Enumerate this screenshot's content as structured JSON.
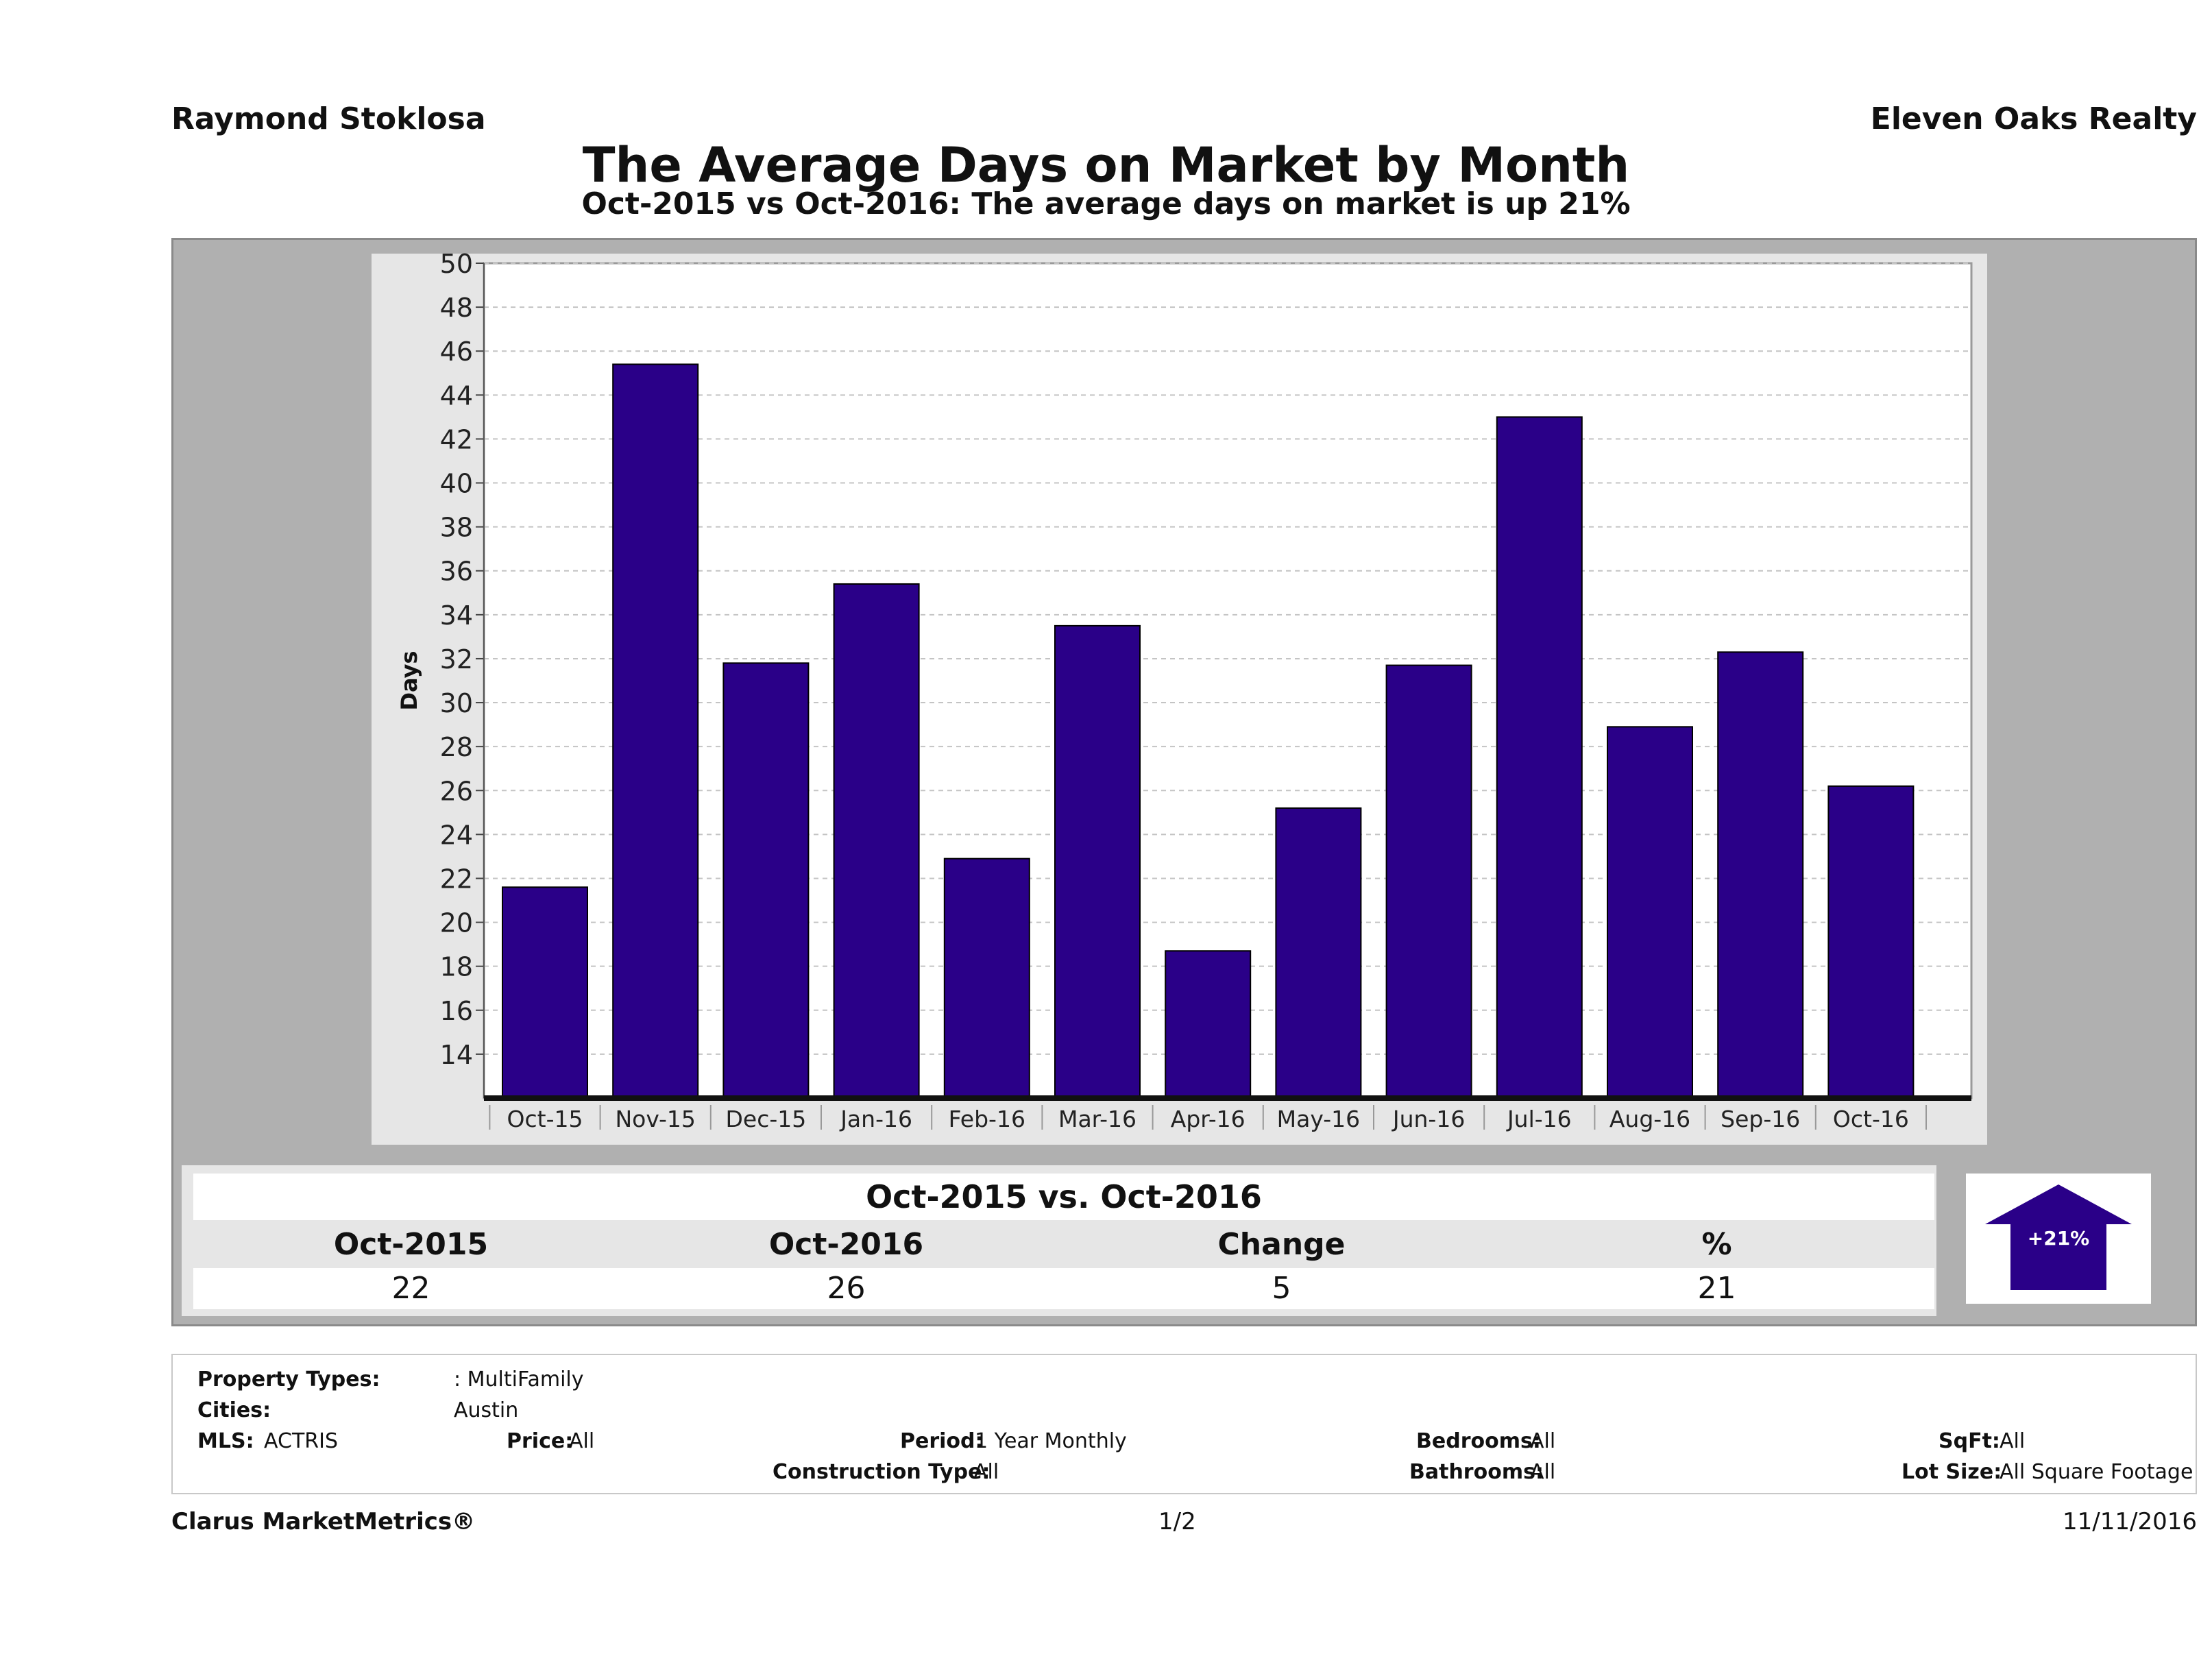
{
  "header": {
    "agent": "Raymond Stoklosa",
    "company": "Eleven Oaks Realty",
    "title": "The Average Days on Market by Month",
    "subtitle": "Oct-2015 vs Oct-2016: The average days on market is up 21%"
  },
  "chart_data": {
    "type": "bar",
    "ylabel": "Days",
    "xlabel": "",
    "ylim": [
      12,
      50
    ],
    "yticks": [
      14,
      16,
      18,
      20,
      22,
      24,
      26,
      28,
      30,
      32,
      34,
      36,
      38,
      40,
      42,
      44,
      46,
      48,
      50
    ],
    "categories": [
      "Oct-15",
      "Nov-15",
      "Dec-15",
      "Jan-16",
      "Feb-16",
      "Mar-16",
      "Apr-16",
      "May-16",
      "Jun-16",
      "Jul-16",
      "Aug-16",
      "Sep-16",
      "Oct-16"
    ],
    "values": [
      21.6,
      45.4,
      31.8,
      35.4,
      22.9,
      33.5,
      18.7,
      25.2,
      31.7,
      43.0,
      28.9,
      32.3,
      26.2
    ],
    "bar_color": "#2a0088",
    "grid": true
  },
  "comparison": {
    "title": "Oct-2015 vs. Oct-2016",
    "headers": [
      "Oct-2015",
      "Oct-2016",
      "Change",
      "%"
    ],
    "values": [
      "22",
      "26",
      "5",
      "21"
    ],
    "arrow_label": "+21%",
    "arrow_icon": "up-arrow-icon"
  },
  "filters": {
    "property_types_label": "Property Types:",
    "property_types_value": ": MultiFamily",
    "cities_label": "Cities:",
    "cities_value": "Austin",
    "mls_label": "MLS:",
    "mls_value": "ACTRIS",
    "price_label": "Price:",
    "price_value": "All",
    "period_label": "Period:",
    "period_value": "1 Year Monthly",
    "construction_label": "Construction Type:",
    "construction_value": "All",
    "bedrooms_label": "Bedrooms:",
    "bedrooms_value": "All",
    "bathrooms_label": "Bathrooms:",
    "bathrooms_value": "All",
    "sqft_label": "SqFt:",
    "sqft_value": "All",
    "lotsize_label": "Lot Size:",
    "lotsize_value": "All Square Footage"
  },
  "footer": {
    "brand": "Clarus MarketMetrics®",
    "page": "1/2",
    "date": "11/11/2016"
  }
}
